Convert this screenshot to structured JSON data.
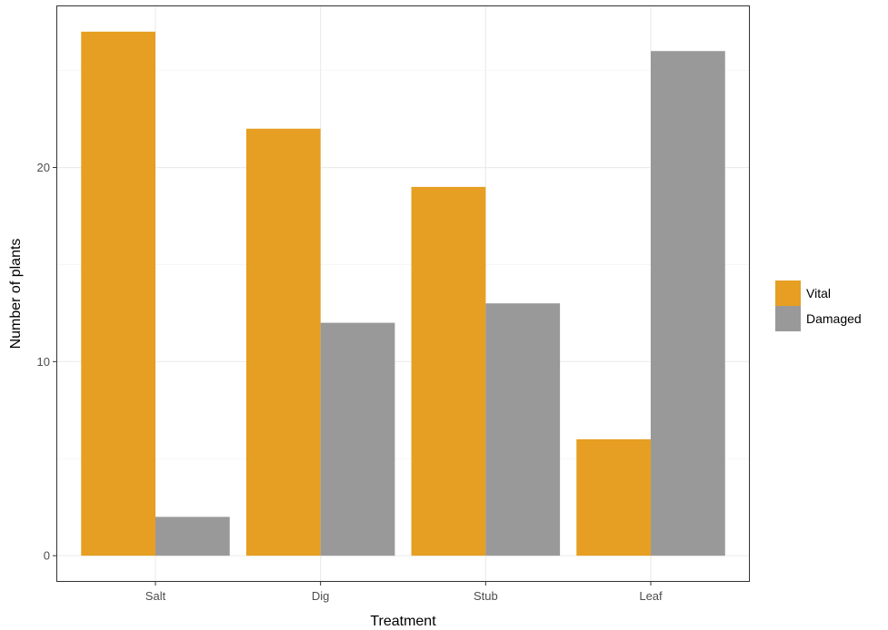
{
  "chart_data": {
    "type": "bar",
    "categories": [
      "Salt",
      "Dig",
      "Stub",
      "Leaf"
    ],
    "series": [
      {
        "name": "Vital",
        "color": "#E69F22",
        "values": [
          27,
          22,
          19,
          6
        ]
      },
      {
        "name": "Damaged",
        "color": "#999999",
        "values": [
          2,
          12,
          13,
          26
        ]
      }
    ],
    "xlabel": "Treatment",
    "ylabel": "Number of plants",
    "ylim": [
      -1.35,
      28.35
    ],
    "yticks": [
      0,
      10,
      20
    ],
    "grid": true,
    "legend_position": "right"
  }
}
